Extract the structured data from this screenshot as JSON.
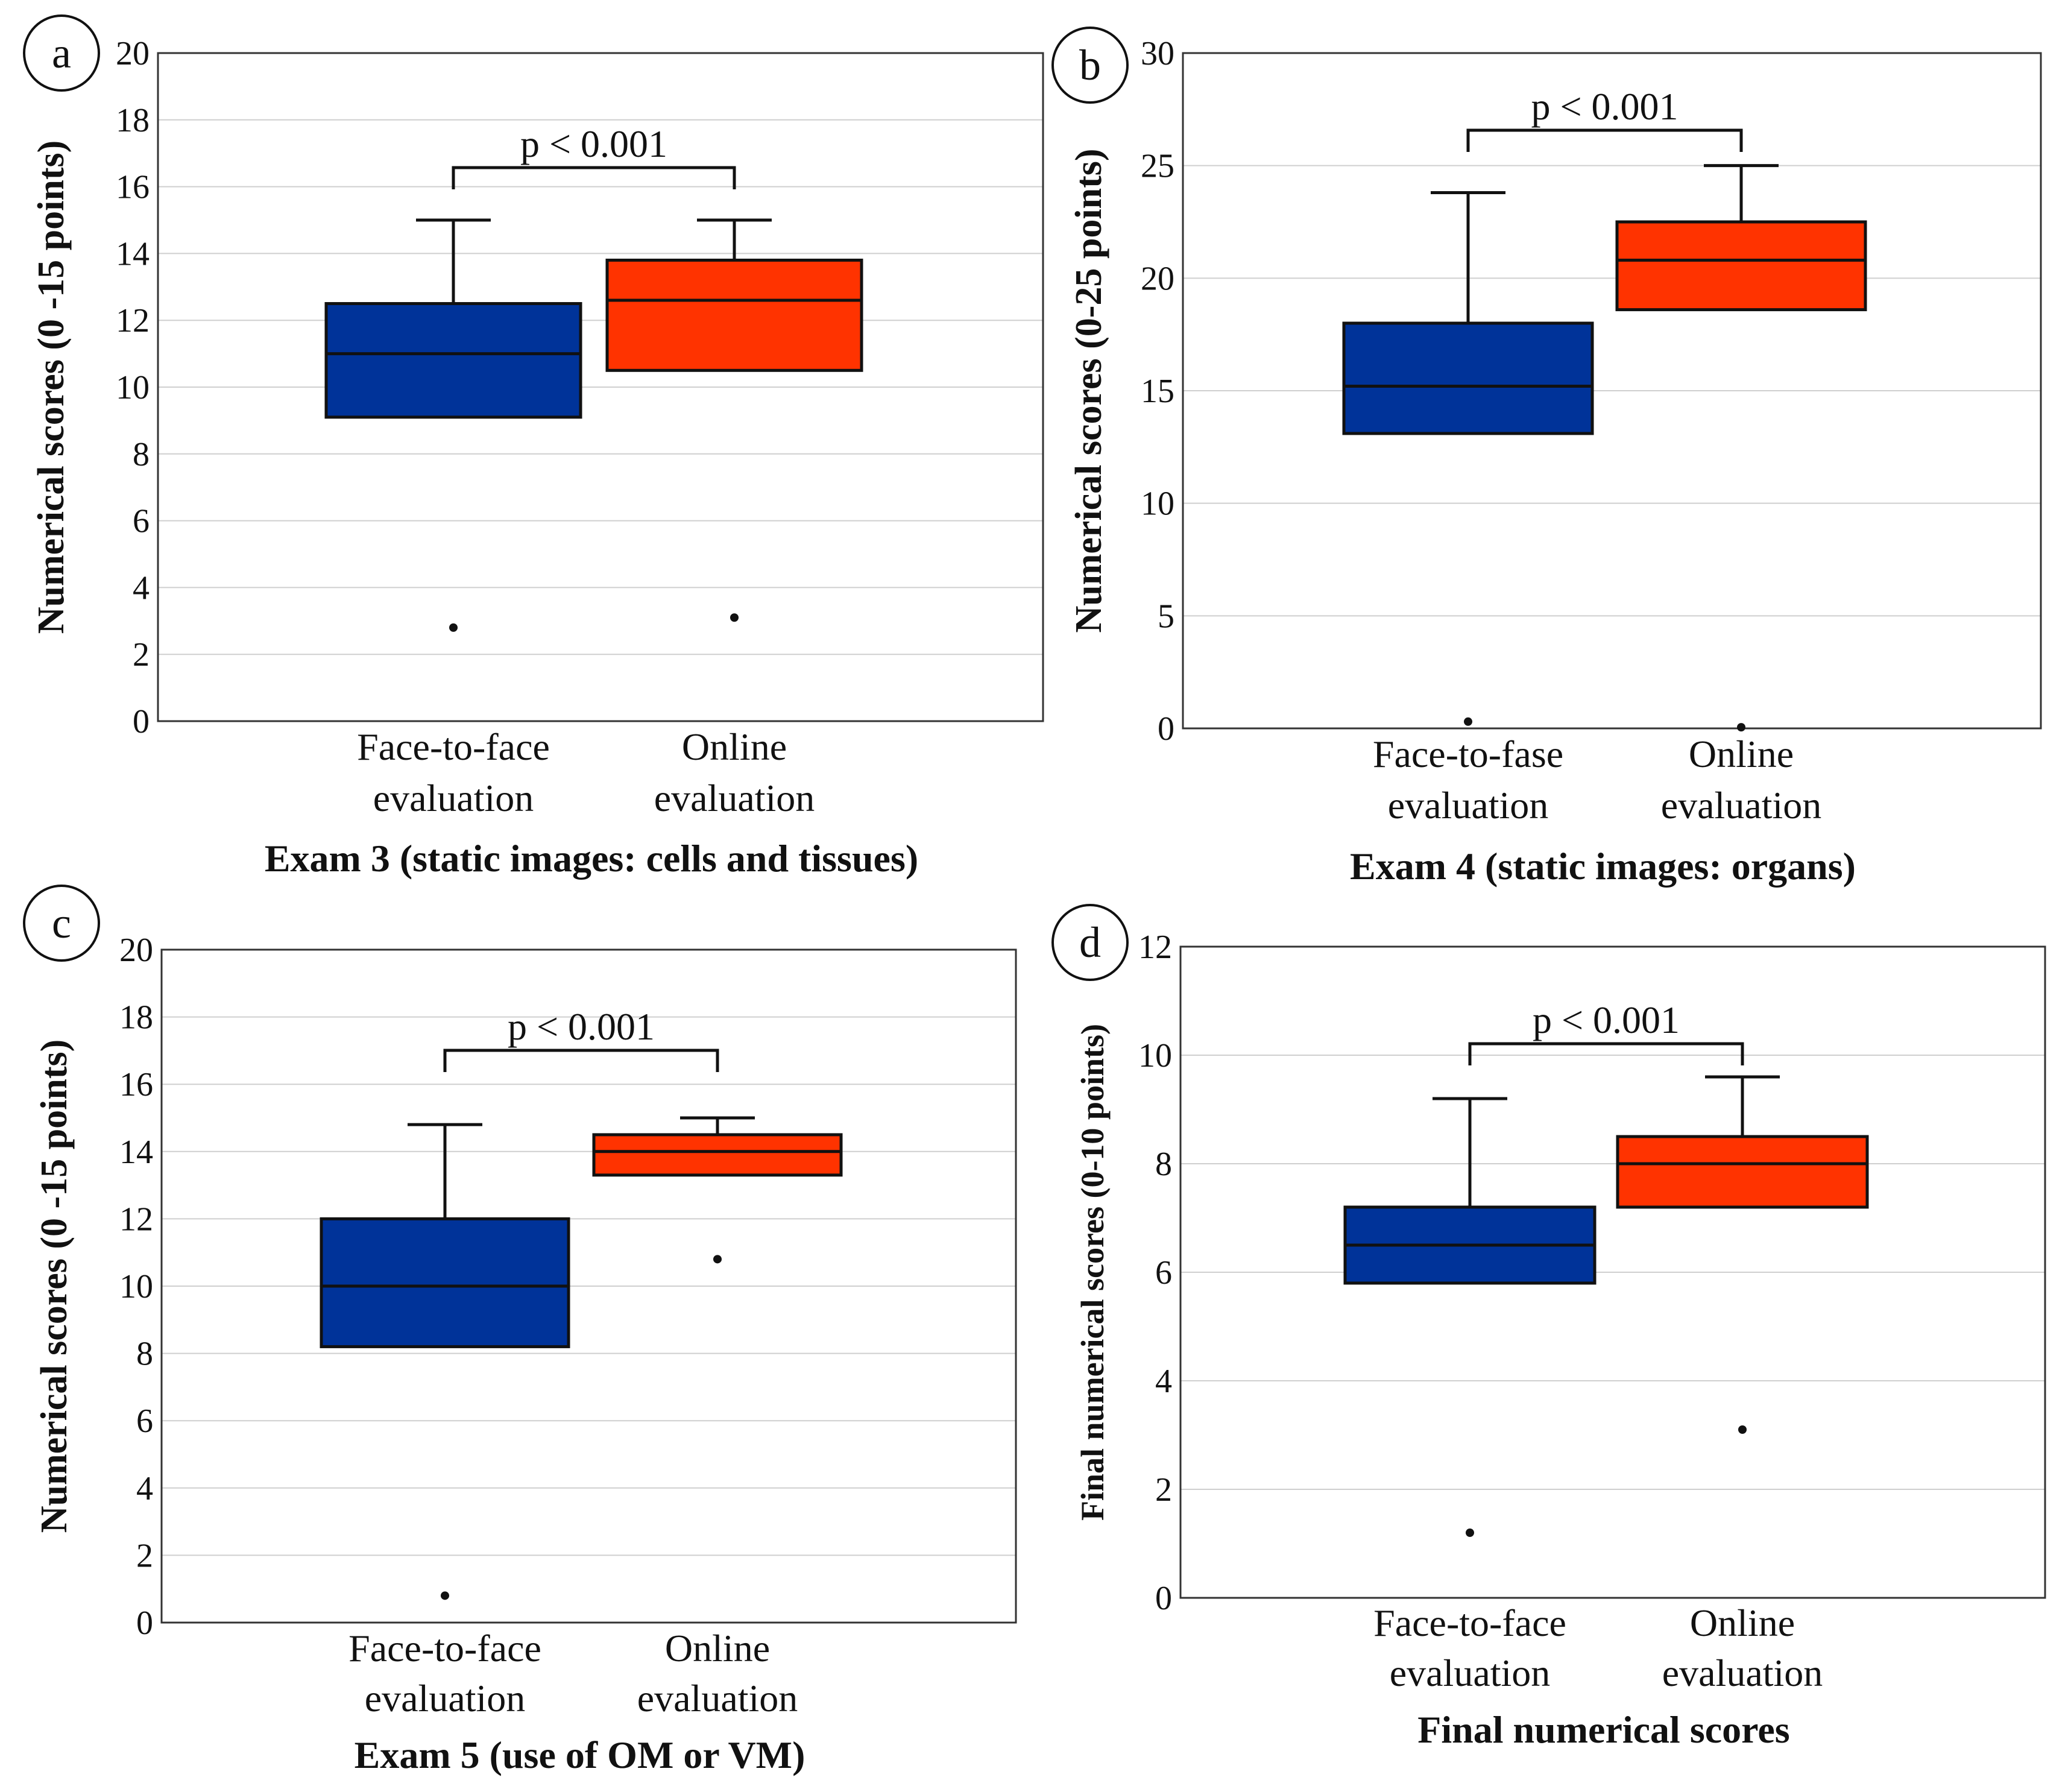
{
  "colors": {
    "face_to_face": "#003399",
    "online": "#ff3300",
    "grid": "#cfcfcf",
    "frame": "#333333"
  },
  "chart_data": [
    {
      "type": "box",
      "panel": "a",
      "caption": "Exam 3 (static images: cells and tissues)",
      "ylabel": "Numerical scores (0 -15 points)",
      "ylim": [
        0,
        20
      ],
      "yticks": [
        0,
        2,
        4,
        6,
        8,
        10,
        12,
        14,
        16,
        18,
        20
      ],
      "p_label": "p < 0.001",
      "groups": [
        {
          "label_lines": [
            "Face-to-face",
            "evaluation"
          ],
          "color": "#003399",
          "whisker_low": 9.1,
          "q1": 9.1,
          "median": 11.0,
          "q3": 12.5,
          "whisker_high": 15.0,
          "outliers": [
            2.8
          ]
        },
        {
          "label_lines": [
            "Online",
            "evaluation"
          ],
          "color": "#ff3300",
          "whisker_low": 10.5,
          "q1": 10.5,
          "median": 12.6,
          "q3": 13.8,
          "whisker_high": 15.0,
          "outliers": [
            3.1
          ]
        }
      ]
    },
    {
      "type": "box",
      "panel": "b",
      "caption": "Exam 4 (static images: organs)",
      "ylabel": "Numerical scores (0-25 points)",
      "ylim": [
        0,
        30
      ],
      "yticks": [
        0,
        5,
        10,
        15,
        20,
        25,
        30
      ],
      "p_label": "p < 0.001",
      "groups": [
        {
          "label_lines": [
            "Face-to-fase",
            "evaluation"
          ],
          "color": "#003399",
          "whisker_low": 13.1,
          "q1": 13.1,
          "median": 15.2,
          "q3": 18.0,
          "whisker_high": 23.8,
          "outliers": [
            0.3
          ]
        },
        {
          "label_lines": [
            "Online",
            "evaluation"
          ],
          "color": "#ff3300",
          "whisker_low": 18.6,
          "q1": 18.6,
          "median": 20.8,
          "q3": 22.5,
          "whisker_high": 25.0,
          "outliers": [
            0.05
          ]
        }
      ]
    },
    {
      "type": "box",
      "panel": "c",
      "caption": "Exam 5 (use of OM or VM)",
      "ylabel": "Numerical scores (0 -15 points)",
      "ylim": [
        0,
        20
      ],
      "yticks": [
        0,
        2,
        4,
        6,
        8,
        10,
        12,
        14,
        16,
        18,
        20
      ],
      "p_label": "p < 0.001",
      "groups": [
        {
          "label_lines": [
            "Face-to-face",
            "evaluation"
          ],
          "color": "#003399",
          "whisker_low": 8.2,
          "q1": 8.2,
          "median": 10.0,
          "q3": 12.0,
          "whisker_high": 14.8,
          "outliers": [
            0.8
          ]
        },
        {
          "label_lines": [
            "Online",
            "evaluation"
          ],
          "color": "#ff3300",
          "whisker_low": 13.3,
          "q1": 13.3,
          "median": 14.0,
          "q3": 14.5,
          "whisker_high": 15.0,
          "outliers": [
            10.8
          ]
        }
      ]
    },
    {
      "type": "box",
      "panel": "d",
      "caption": "Final numerical scores",
      "ylabel": "Final numerical scores (0-10 points)",
      "ylim": [
        0,
        12
      ],
      "yticks": [
        0,
        2,
        4,
        6,
        8,
        10,
        12
      ],
      "p_label": "p < 0.001",
      "groups": [
        {
          "label_lines": [
            "Face-to-face",
            "evaluation"
          ],
          "color": "#003399",
          "whisker_low": 5.8,
          "q1": 5.8,
          "median": 6.5,
          "q3": 7.2,
          "whisker_high": 9.2,
          "outliers": [
            1.2
          ]
        },
        {
          "label_lines": [
            "Online",
            "evaluation"
          ],
          "color": "#ff3300",
          "whisker_low": 7.2,
          "q1": 7.2,
          "median": 8.0,
          "q3": 8.5,
          "whisker_high": 9.6,
          "outliers": [
            3.1
          ]
        }
      ]
    }
  ]
}
